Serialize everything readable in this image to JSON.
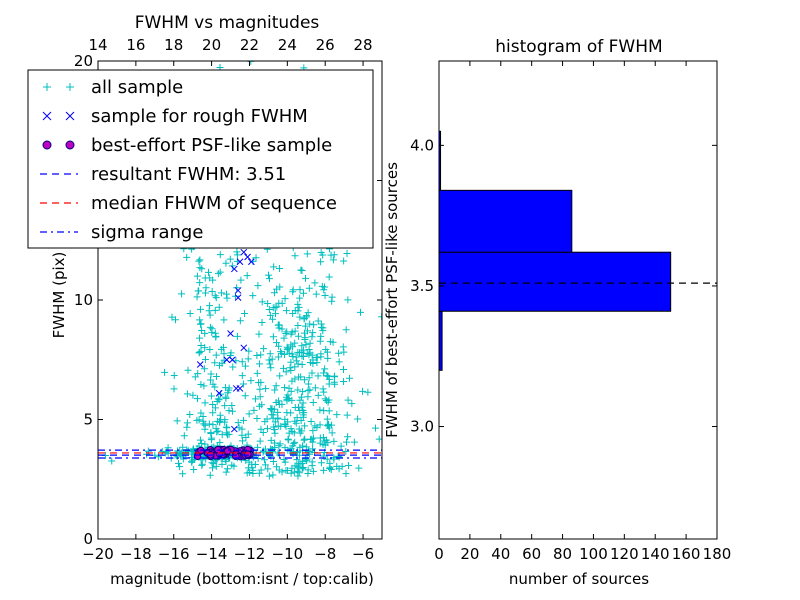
{
  "chart_data": [
    {
      "type": "scatter",
      "title": "FWHM vs magnitudes",
      "xlabel": "magnitude (bottom:isnt / top:calib)",
      "ylabel": "FWHM (pix)",
      "xlim": [
        -20,
        -5
      ],
      "ylim": [
        0,
        20
      ],
      "x_ticks": [
        -20,
        -18,
        -16,
        -14,
        -12,
        -10,
        -8,
        -6
      ],
      "x_tick_labels": [
        "−20",
        "−18",
        "−16",
        "−14",
        "−12",
        "−10",
        "−8",
        "−6"
      ],
      "y_ticks": [
        0,
        5,
        10,
        15,
        20
      ],
      "y_tick_labels": [
        "0",
        "5",
        "10",
        "15",
        "20"
      ],
      "top_axis_ticks": [
        14,
        16,
        18,
        20,
        22,
        24,
        26,
        28
      ],
      "top_axis_tick_labels": [
        "14",
        "16",
        "18",
        "20",
        "22",
        "24",
        "26",
        "28"
      ],
      "top_axis_offset": 34,
      "series": [
        {
          "name": "all sample",
          "marker": "plus",
          "color": "#00bfbf",
          "clusters": [
            [
              -9.4,
              6.5,
              1.5,
              4.5,
              520
            ],
            [
              -14.0,
              8.0,
              0.9,
              5.5,
              260
            ],
            [
              -13.4,
              3.6,
              1.5,
              0.12,
              200
            ]
          ]
        },
        {
          "name": "sample for rough FWHM",
          "marker": "x",
          "color": "#0000ff",
          "points": [
            [
              -14.6,
              7.3
            ],
            [
              -13.6,
              6.1
            ],
            [
              -13.2,
              7.5
            ],
            [
              -12.9,
              7.5
            ],
            [
              -12.7,
              6.3
            ],
            [
              -12.5,
              6.3
            ],
            [
              -13.0,
              8.6
            ],
            [
              -12.3,
              8.0
            ],
            [
              -12.6,
              10.4
            ],
            [
              -12.8,
              11.3
            ],
            [
              -12.5,
              11.6
            ],
            [
              -12.3,
              12.0
            ],
            [
              -12.1,
              11.8
            ],
            [
              -11.9,
              11.6
            ],
            [
              -12.6,
              10.1
            ],
            [
              -12.8,
              4.6
            ]
          ]
        },
        {
          "name": "best-effort PSF-like sample",
          "marker": "circle",
          "color": "#bf00bf",
          "edge": "#000080",
          "range": [
            -14.8,
            -11.8
          ],
          "count": 55,
          "yspread": [
            3.45,
            3.75
          ]
        },
        {
          "name": "resultant FWHM: 3.51",
          "type": "hline",
          "value": 3.51,
          "color": "#0000ff",
          "style": "dashed"
        },
        {
          "name": "median FHWM of sequence",
          "type": "hline",
          "value": 3.6,
          "color": "#ff0000",
          "style": "dashed"
        },
        {
          "name": "sigma range",
          "type": "hline",
          "values": [
            3.39,
            3.72
          ],
          "color": "#0000ff",
          "style": "dashdot"
        }
      ],
      "legend": "upper-left"
    },
    {
      "type": "bar",
      "orientation": "horizontal",
      "title": "histogram of FWHM",
      "xlabel": "number of sources",
      "ylabel": "FWHM of best-effort PSF-like sources",
      "xlim": [
        0,
        180
      ],
      "ylim": [
        2.6,
        4.3
      ],
      "x_ticks": [
        0,
        20,
        40,
        60,
        80,
        100,
        120,
        140,
        160,
        180
      ],
      "x_tick_labels": [
        "0",
        "20",
        "40",
        "60",
        "80",
        "100",
        "120",
        "140",
        "160",
        "180"
      ],
      "y_ticks": [
        3.0,
        3.5,
        4.0
      ],
      "y_tick_labels": [
        "3.0",
        "3.5",
        "4.0"
      ],
      "bin_edges": [
        3.2,
        3.41,
        3.62,
        3.84,
        4.05
      ],
      "values": [
        2,
        150,
        86,
        1
      ],
      "bar_color": "#0000ff",
      "reference_line": 3.51
    }
  ]
}
